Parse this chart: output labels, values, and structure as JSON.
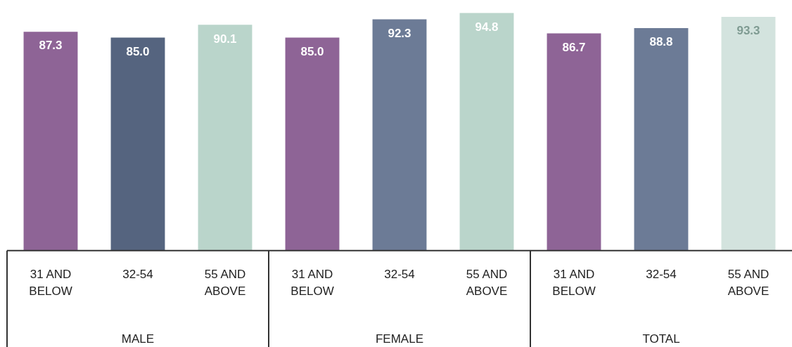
{
  "chart_data": {
    "type": "bar",
    "categories": [
      "31 AND BELOW",
      "32-54",
      "55 AND ABOVE",
      "31 AND BELOW",
      "32-54",
      "55 AND ABOVE",
      "31 AND BELOW",
      "32-54",
      "55 AND ABOVE"
    ],
    "values": [
      87.3,
      85.0,
      90.1,
      85.0,
      92.3,
      94.8,
      86.7,
      88.8,
      93.3
    ],
    "colors": [
      "#8e6496",
      "#55647f",
      "#bad5cb",
      "#8e6496",
      "#6c7b96",
      "#bad5cb",
      "#8e6496",
      "#6c7b96",
      "#d3e3de"
    ],
    "value_labels": [
      "87.3",
      "85.0",
      "90.1",
      "85.0",
      "92.3",
      "94.8",
      "86.7",
      "88.8",
      "93.3"
    ],
    "tick_labels": "x",
    "legend": false,
    "annotations": [
      "MALE",
      "FEMALE",
      "TOTAL"
    ]
  }
}
